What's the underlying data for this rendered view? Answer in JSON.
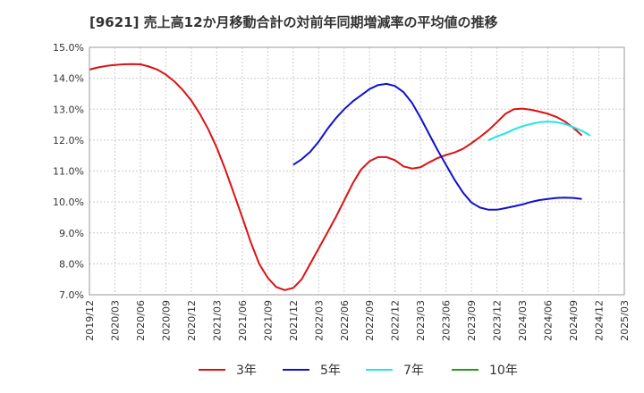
{
  "chart_data": {
    "type": "line",
    "title": "[9621]  売上高12か月移動合計の対前年同期増減率の平均値の推移",
    "xlabel": "",
    "ylabel": "",
    "ylim": [
      7.0,
      15.0
    ],
    "yticks": [
      "7.0%",
      "8.0%",
      "9.0%",
      "10.0%",
      "11.0%",
      "12.0%",
      "13.0%",
      "14.0%",
      "15.0%"
    ],
    "xticks": [
      "2019/12",
      "2020/03",
      "2020/06",
      "2020/09",
      "2020/12",
      "2021/03",
      "2021/06",
      "2021/09",
      "2021/12",
      "2022/03",
      "2022/06",
      "2022/09",
      "2022/12",
      "2023/03",
      "2023/06",
      "2023/09",
      "2023/12",
      "2024/03",
      "2024/06",
      "2024/09",
      "2024/12",
      "2025/03"
    ],
    "x_start": "2019/12",
    "grid": true,
    "legend_position": "bottom",
    "series": [
      {
        "name": "3年",
        "color": "#dd1111",
        "start_index": 0,
        "values": [
          14.28,
          14.35,
          14.4,
          14.43,
          14.45,
          14.46,
          14.45,
          14.38,
          14.28,
          14.12,
          13.9,
          13.62,
          13.28,
          12.85,
          12.35,
          11.75,
          11.05,
          10.28,
          9.5,
          8.7,
          8.0,
          7.55,
          7.25,
          7.15,
          7.22,
          7.5,
          8.0,
          8.5,
          9.0,
          9.5,
          10.05,
          10.6,
          11.05,
          11.32,
          11.45,
          11.45,
          11.35,
          11.15,
          11.08,
          11.12,
          11.28,
          11.42,
          11.52,
          11.6,
          11.72,
          11.9,
          12.1,
          12.32,
          12.58,
          12.85,
          13.0,
          13.02,
          12.98,
          12.92,
          12.85,
          12.75,
          12.6,
          12.4,
          12.15
        ]
      },
      {
        "name": "5年",
        "color": "#1111cc",
        "start_index": 24,
        "values": [
          11.2,
          11.38,
          11.62,
          11.95,
          12.35,
          12.7,
          13.0,
          13.25,
          13.45,
          13.65,
          13.78,
          13.82,
          13.75,
          13.55,
          13.2,
          12.72,
          12.2,
          11.68,
          11.2,
          10.72,
          10.3,
          9.98,
          9.82,
          9.75,
          9.75,
          9.8,
          9.86,
          9.92,
          10.0,
          10.06,
          10.1,
          10.13,
          10.14,
          10.13,
          10.1
        ]
      },
      {
        "name": "7年",
        "color": "#22e5e5",
        "start_index": 47,
        "values": [
          12.0,
          12.12,
          12.22,
          12.35,
          12.45,
          12.52,
          12.58,
          12.6,
          12.58,
          12.52,
          12.42,
          12.3,
          12.15
        ]
      },
      {
        "name": "10年",
        "color": "#229922",
        "start_index": 0,
        "values": []
      }
    ]
  }
}
